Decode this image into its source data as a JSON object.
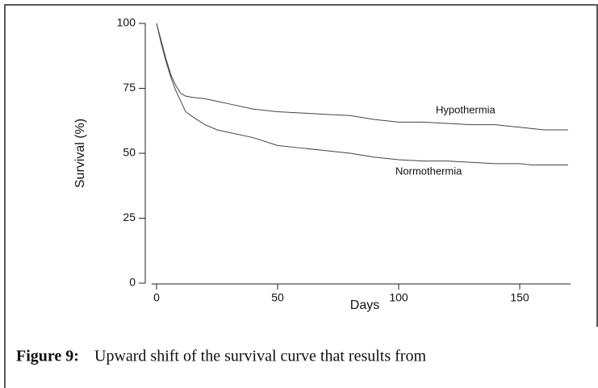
{
  "chart_data": {
    "type": "line",
    "ylabel": "Survival (%)",
    "xlabel": "Days",
    "x": [
      0,
      2,
      4,
      6,
      8,
      10,
      12,
      15,
      20,
      25,
      30,
      40,
      50,
      60,
      70,
      80,
      90,
      100,
      110,
      120,
      130,
      140,
      150,
      155,
      160,
      170
    ],
    "series": [
      {
        "name": "Hypothermia",
        "color": "#444444",
        "values": [
          100,
          93,
          86,
          80,
          76,
          73,
          72,
          71.5,
          71,
          70,
          69,
          67,
          66,
          65.5,
          65,
          64.5,
          63,
          62,
          62,
          61.5,
          61,
          61,
          60,
          59.5,
          59,
          59
        ]
      },
      {
        "name": "Normothermia",
        "color": "#444444",
        "values": [
          100,
          92,
          85,
          79,
          74,
          70,
          66,
          64,
          61,
          59,
          58,
          56,
          53,
          52,
          51,
          50,
          48.5,
          47.5,
          47,
          47,
          46.5,
          46,
          46,
          45.5,
          45.5,
          45.5
        ]
      }
    ],
    "xlim": [
      -2,
      171
    ],
    "ylim": [
      0,
      100
    ],
    "xticks": [
      0,
      50,
      100,
      150
    ],
    "yticks": [
      0,
      25,
      50,
      75,
      100
    ],
    "caption_label": "Figure 9:",
    "caption_text": "Upward shift of the survival curve that results from"
  }
}
